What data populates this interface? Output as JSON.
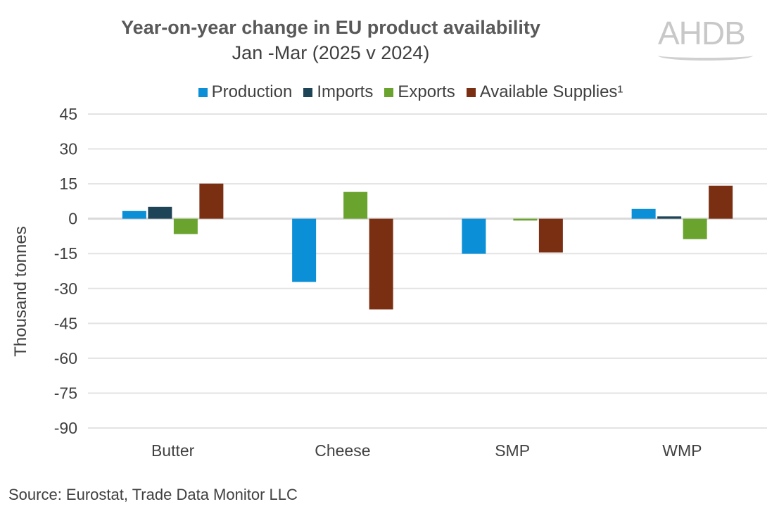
{
  "logo": "AHDB",
  "source": "Source: Eurostat, Trade Data Monitor LLC",
  "chart_data": {
    "type": "bar",
    "title": "Year-on-year change in EU product availability",
    "subtitle": "Jan -Mar (2025 v 2024)",
    "xlabel": "",
    "ylabel": "Thousand tonnes",
    "ylim": [
      -90,
      45
    ],
    "yticks": [
      45,
      30,
      15,
      0,
      -15,
      -30,
      -45,
      -60,
      -75,
      -90
    ],
    "grid": true,
    "legend_position": "top",
    "categories": [
      "Butter",
      "Cheese",
      "SMP",
      "WMP"
    ],
    "series": [
      {
        "name": "Production",
        "color": "#0b8fd6",
        "values": [
          3.3,
          -27.2,
          -15.1,
          4.2
        ]
      },
      {
        "name": "Imports",
        "color": "#1d4457",
        "values": [
          5.1,
          0,
          0,
          1.0
        ]
      },
      {
        "name": "Exports",
        "color": "#6aa32e",
        "values": [
          -6.6,
          11.5,
          -0.8,
          -8.8
        ]
      },
      {
        "name": "Available Supplies¹",
        "color": "#7b2f12",
        "values": [
          15.1,
          -39.0,
          -14.5,
          14.2
        ]
      }
    ]
  }
}
